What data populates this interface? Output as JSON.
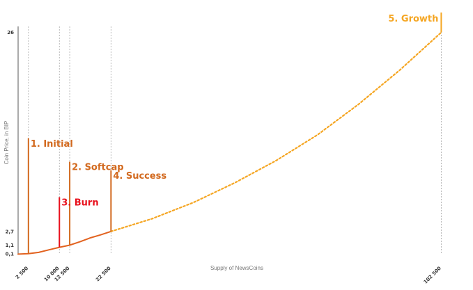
{
  "chart_data": {
    "type": "line",
    "xlabel": "Supply of NewsCoins",
    "ylabel": "Coin Price, in BIP",
    "x_ticks": [
      {
        "value": 2500,
        "label": "2 500"
      },
      {
        "value": 10000,
        "label": "10 000"
      },
      {
        "value": 12500,
        "label": "12 500"
      },
      {
        "value": 22500,
        "label": "22 500"
      },
      {
        "value": 102500,
        "label": "102 500"
      }
    ],
    "y_ticks": [
      {
        "value": 0.1,
        "label": "0,1"
      },
      {
        "value": 1.1,
        "label": "1,1"
      },
      {
        "value": 2.7,
        "label": "2,7"
      },
      {
        "value": 26,
        "label": "26"
      }
    ],
    "xlim": [
      0,
      108000
    ],
    "ylim": [
      0,
      28
    ],
    "grid": "vertical dotted lines at x ticks",
    "series": [
      {
        "style": "solid",
        "color": "#e2621f",
        "x": [
          0,
          2500,
          5000,
          7500,
          10000,
          12500,
          15000,
          17500,
          20000,
          22500
        ],
        "y": [
          0.05,
          0.1,
          0.25,
          0.55,
          0.85,
          1.1,
          1.5,
          1.95,
          2.3,
          2.7
        ]
      },
      {
        "style": "dotted",
        "color": "#f5a623",
        "x": [
          22500,
          32500,
          42500,
          52500,
          62500,
          72500,
          82500,
          92500,
          102500
        ],
        "y": [
          2.7,
          4.2,
          6.1,
          8.4,
          11.0,
          14.0,
          17.6,
          21.6,
          26
        ]
      }
    ],
    "annotations": [
      {
        "label": "1. Initial",
        "x": 2500,
        "color": "#d2691e"
      },
      {
        "label": "2. Softcap",
        "x": 12500,
        "color": "#d2691e"
      },
      {
        "label": "3. Burn",
        "x": 10000,
        "color": "#e8101c"
      },
      {
        "label": "4. Success",
        "x": 22500,
        "color": "#d2691e"
      },
      {
        "label": "5. Growth",
        "x": 102500,
        "color": "#f5a623"
      }
    ]
  }
}
